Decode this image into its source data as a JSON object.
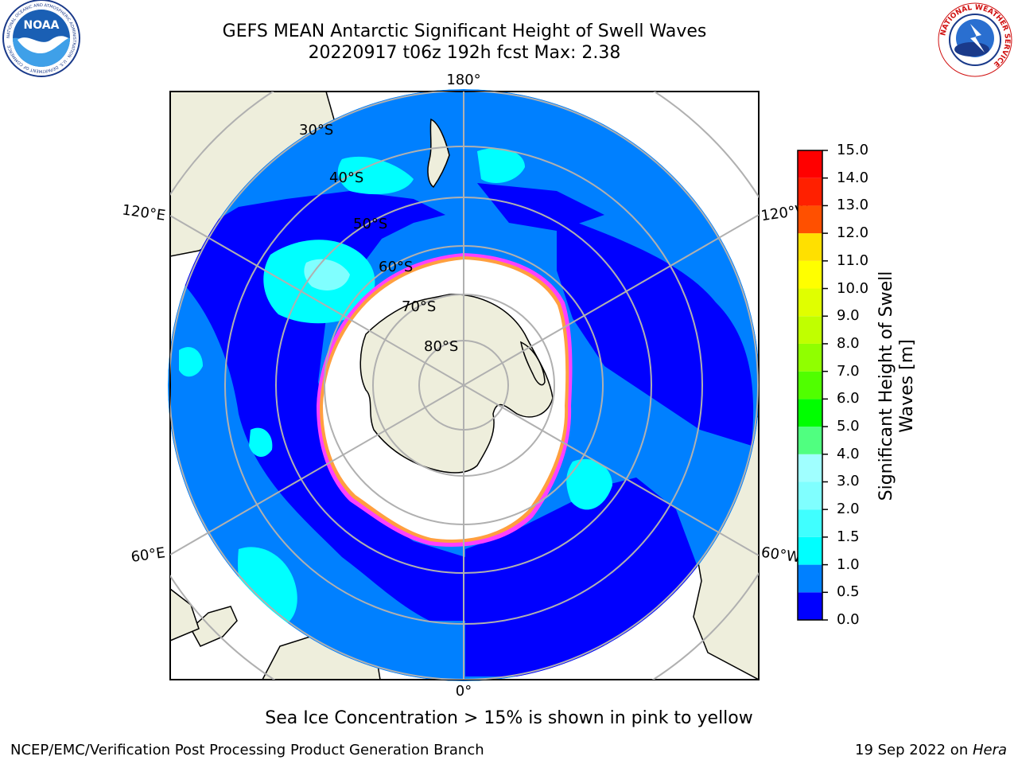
{
  "header": {
    "title_line1": "GEFS MEAN Antarctic Significant Height of Swell Waves",
    "title_line2": "20220917 t06z 192h fcst   Max: 2.38"
  },
  "logos": {
    "left": {
      "name": "noaa-logo",
      "text": "NOAA",
      "ring_text": "NATIONAL OCEANIC AND ATMOSPHERIC ADMINISTRATION · U.S. DEPARTMENT OF COMMERCE"
    },
    "right": {
      "name": "nws-logo",
      "ring_text": "NATIONAL WEATHER SERVICE"
    }
  },
  "map": {
    "projection": "south polar stereographic",
    "longitude_labels": {
      "top": "180°",
      "bottom": "0°",
      "upper_left": "120°E",
      "upper_right": "120°W",
      "lower_left": "60°E",
      "lower_right": "60°W"
    },
    "latitude_labels": [
      "30°S",
      "40°S",
      "50°S",
      "60°S",
      "70°S",
      "80°S"
    ],
    "colors": {
      "land": "#eeeedc",
      "ice": "#ffffff",
      "grid": "#b0b0b0",
      "ice_edge": [
        "#ff40ff",
        "#ff9f3f",
        "#ffe040"
      ]
    }
  },
  "colorbar": {
    "label_line1": "Significant Height of Swell",
    "label_line2": "Waves [m]",
    "ticks": [
      "15.0",
      "14.0",
      "13.0",
      "12.0",
      "11.0",
      "10.0",
      "9.0",
      "8.0",
      "7.0",
      "6.0",
      "5.0",
      "4.0",
      "3.0",
      "2.0",
      "1.5",
      "1.0",
      "0.5",
      "0.0"
    ],
    "colors_bottom_to_top": [
      "#0000ff",
      "#0080ff",
      "#00ffff",
      "#40ffff",
      "#80ffff",
      "#a0ffff",
      "#50ff80",
      "#00ff00",
      "#50ff00",
      "#90ff00",
      "#c0ff00",
      "#e0ff00",
      "#ffff00",
      "#ffe000",
      "#ffc000",
      "#ff8000",
      "#ff5000",
      "#ff2000",
      "#ff0000"
    ]
  },
  "subtitle": "Sea Ice Concentration > 15% is shown in pink to yellow",
  "footer": {
    "left": "NCEP/EMC/Verification Post Processing Product Generation Branch",
    "right_date": "19 Sep 2022 on ",
    "right_host": "Hera"
  }
}
